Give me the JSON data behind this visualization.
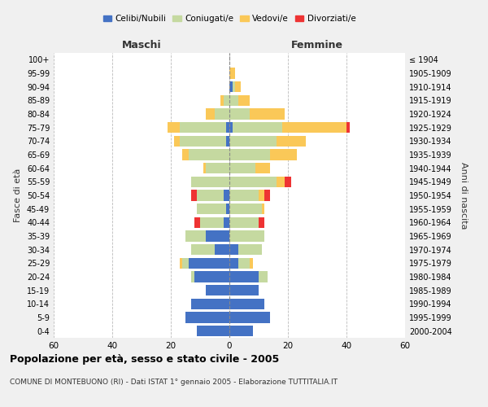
{
  "age_groups": [
    "0-4",
    "5-9",
    "10-14",
    "15-19",
    "20-24",
    "25-29",
    "30-34",
    "35-39",
    "40-44",
    "45-49",
    "50-54",
    "55-59",
    "60-64",
    "65-69",
    "70-74",
    "75-79",
    "80-84",
    "85-89",
    "90-94",
    "95-99",
    "100+"
  ],
  "birth_years": [
    "2000-2004",
    "1995-1999",
    "1990-1994",
    "1985-1989",
    "1980-1984",
    "1975-1979",
    "1970-1974",
    "1965-1969",
    "1960-1964",
    "1955-1959",
    "1950-1954",
    "1945-1949",
    "1940-1944",
    "1935-1939",
    "1930-1934",
    "1925-1929",
    "1920-1924",
    "1915-1919",
    "1910-1914",
    "1905-1909",
    "≤ 1904"
  ],
  "male": {
    "celibi": [
      11,
      15,
      13,
      8,
      12,
      14,
      5,
      8,
      2,
      1,
      2,
      0,
      0,
      0,
      1,
      1,
      0,
      0,
      0,
      0,
      0
    ],
    "coniugati": [
      0,
      0,
      0,
      0,
      1,
      2,
      8,
      7,
      8,
      10,
      9,
      13,
      8,
      14,
      16,
      16,
      5,
      2,
      0,
      0,
      0
    ],
    "vedovi": [
      0,
      0,
      0,
      0,
      0,
      1,
      0,
      0,
      0,
      0,
      0,
      0,
      1,
      2,
      2,
      4,
      3,
      1,
      0,
      0,
      0
    ],
    "divorziati": [
      0,
      0,
      0,
      0,
      0,
      0,
      0,
      0,
      2,
      0,
      2,
      0,
      0,
      0,
      0,
      0,
      0,
      0,
      0,
      0,
      0
    ]
  },
  "female": {
    "nubili": [
      8,
      14,
      12,
      10,
      10,
      3,
      3,
      0,
      0,
      0,
      0,
      0,
      0,
      0,
      0,
      1,
      0,
      0,
      1,
      0,
      0
    ],
    "coniugate": [
      0,
      0,
      0,
      0,
      3,
      4,
      8,
      12,
      10,
      11,
      10,
      16,
      9,
      14,
      16,
      17,
      7,
      3,
      1,
      0,
      0
    ],
    "vedove": [
      0,
      0,
      0,
      0,
      0,
      1,
      0,
      0,
      0,
      1,
      2,
      3,
      5,
      9,
      10,
      22,
      12,
      4,
      2,
      2,
      0
    ],
    "divorziate": [
      0,
      0,
      0,
      0,
      0,
      0,
      0,
      0,
      2,
      0,
      2,
      2,
      0,
      0,
      0,
      1,
      0,
      0,
      0,
      0,
      0
    ]
  },
  "colors": {
    "celibi": "#4472C4",
    "coniugati": "#C5D9A0",
    "vedovi": "#FAC858",
    "divorziati": "#EE3333"
  },
  "xlim": 60,
  "title": "Popolazione per età, sesso e stato civile - 2005",
  "subtitle": "COMUNE DI MONTEBUONO (RI) - Dati ISTAT 1° gennaio 2005 - Elaborazione TUTTITALIA.IT",
  "xlabel_left": "Maschi",
  "xlabel_right": "Femmine",
  "ylabel_left": "Fasce di età",
  "ylabel_right": "Anni di nascita",
  "legend_labels": [
    "Celibi/Nubili",
    "Coniugati/e",
    "Vedovi/e",
    "Divorziati/e"
  ],
  "bg_color": "#f0f0f0",
  "plot_bg": "#ffffff"
}
